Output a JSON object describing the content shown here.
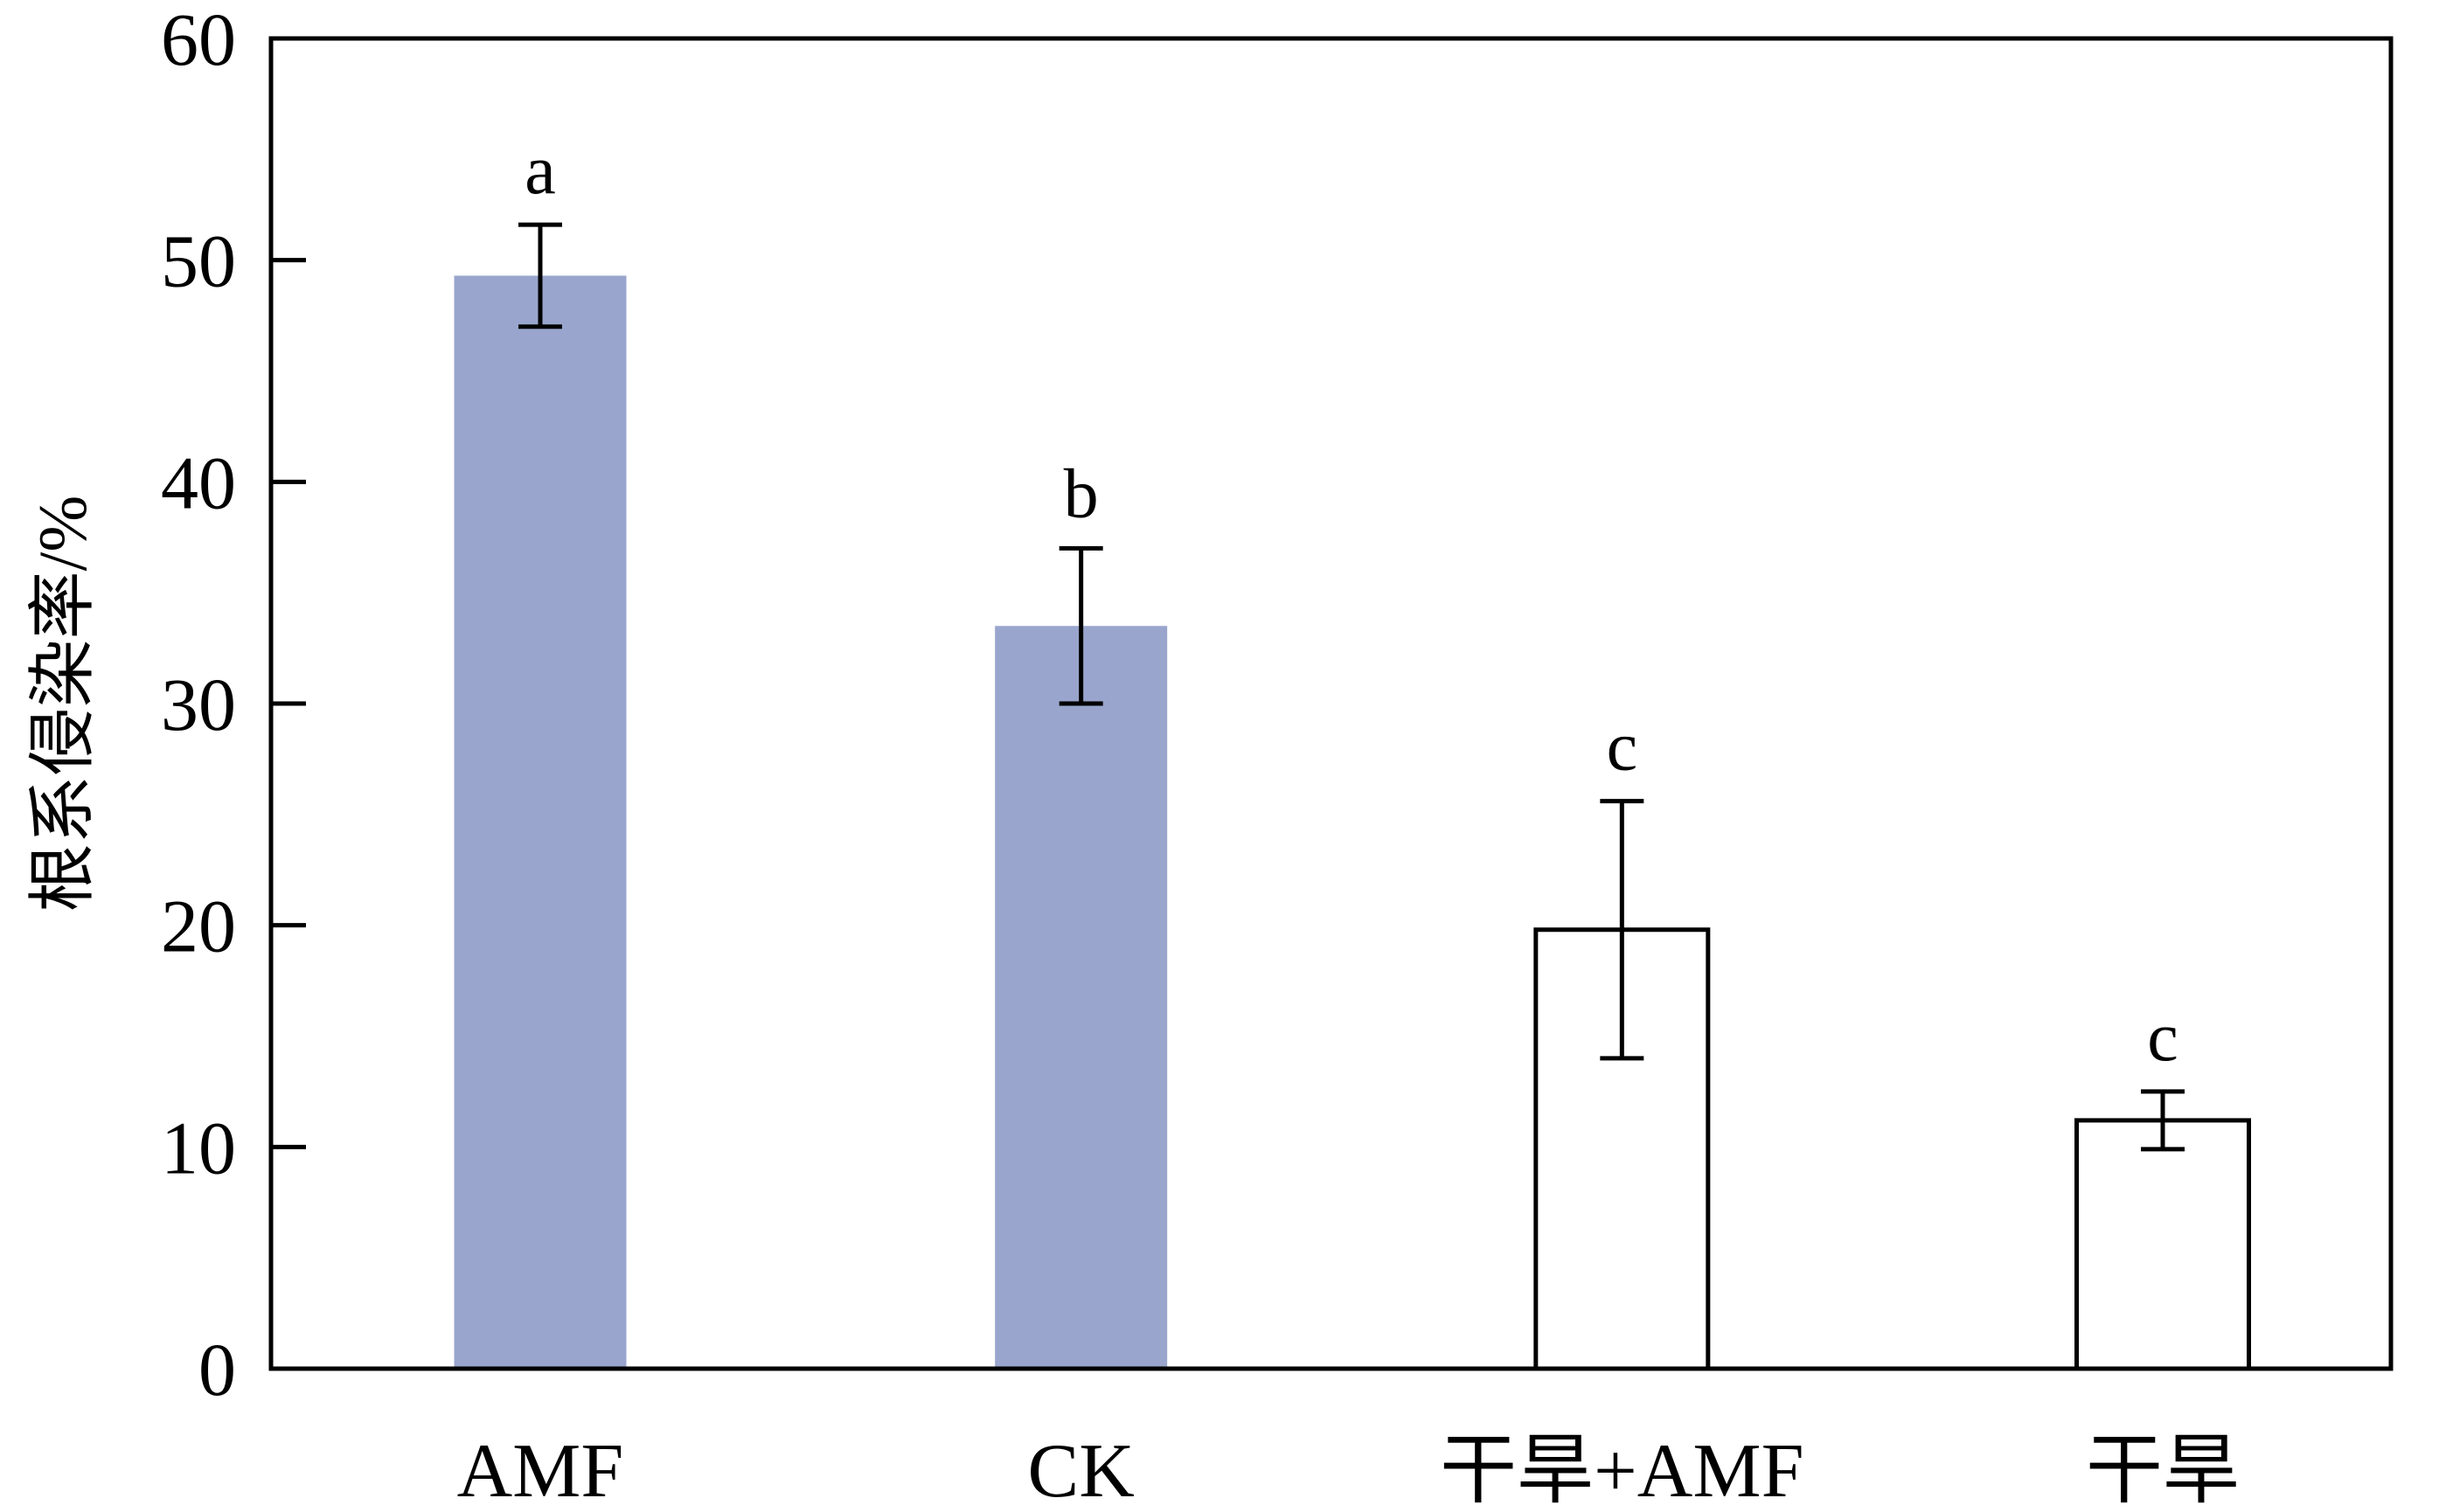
{
  "chart_data": {
    "type": "bar",
    "categories": [
      "AMF",
      "CK",
      "干旱+AMF",
      "干旱"
    ],
    "values": [
      49.3,
      33.5,
      19.8,
      11.2
    ],
    "errors": [
      2.3,
      3.5,
      5.8,
      1.3
    ],
    "significance_letters": [
      "a",
      "b",
      "c",
      "c"
    ],
    "bar_fill": [
      "#99a5cc",
      "#99a5cc",
      "#ffffff",
      "#ffffff"
    ],
    "bar_stroke": [
      "none",
      "none",
      "#000000",
      "#000000"
    ],
    "title": "",
    "xlabel": "",
    "ylabel": "根系侵染率/%",
    "ylim": [
      0,
      60
    ],
    "yticks": [
      0,
      10,
      20,
      30,
      40,
      50,
      60
    ],
    "grid": false,
    "legend": "none"
  }
}
